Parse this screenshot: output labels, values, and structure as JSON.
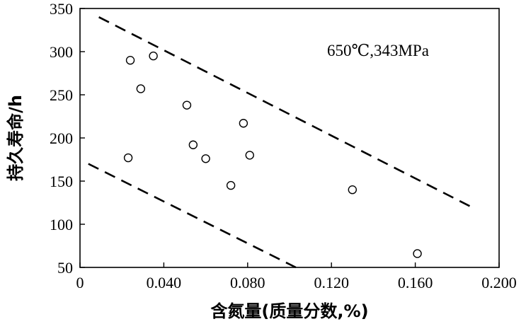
{
  "chart_data": {
    "type": "scatter",
    "title": "",
    "xlabel": "含氮量(质量分数,%)",
    "ylabel": "持久寿命/h",
    "xlim": [
      0,
      0.2
    ],
    "ylim": [
      50,
      350
    ],
    "x_ticks": [
      0,
      0.04,
      0.08,
      0.12,
      0.16,
      0.2
    ],
    "x_tick_labels": [
      "0",
      "0.040",
      "0.080",
      "0.120",
      "0.160",
      "0.200"
    ],
    "y_ticks": [
      50,
      100,
      150,
      200,
      250,
      300,
      350
    ],
    "y_tick_labels": [
      "50",
      "100",
      "150",
      "200",
      "250",
      "300",
      "350"
    ],
    "annotation": "650℃,343MPa",
    "grid": false,
    "series": [
      {
        "x": [
          0.024,
          0.035,
          0.029,
          0.051,
          0.078,
          0.054,
          0.023,
          0.06,
          0.081,
          0.072,
          0.13,
          0.161
        ],
        "y": [
          290,
          295,
          257,
          238,
          217,
          192,
          177,
          176,
          180,
          145,
          140,
          66
        ]
      }
    ],
    "bound_lines": [
      {
        "x": [
          0.009,
          0.186
        ],
        "y": [
          340,
          121
        ]
      },
      {
        "x": [
          0.004,
          0.103
        ],
        "y": [
          170,
          50
        ]
      }
    ]
  }
}
